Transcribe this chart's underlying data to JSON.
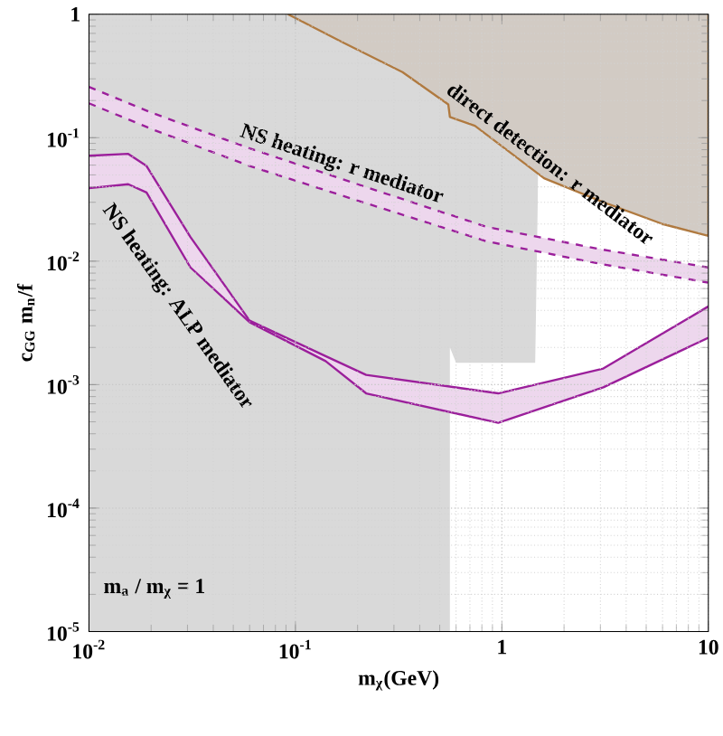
{
  "chart_data": {
    "type": "line",
    "xlabel": "m$_{χ}$(GeV)",
    "ylabel": "c$_{GG}$ m$_{n}$/f",
    "log": "xy",
    "grid": true,
    "xlim": [
      0.01,
      10
    ],
    "ylim": [
      1e-05,
      1
    ],
    "xticks": [
      {
        "value": 0.01,
        "label": "10$^{-2}$"
      },
      {
        "value": 0.1,
        "label": "10$^{-1}$"
      },
      1,
      10
    ],
    "yticks": [
      {
        "value": 1e-05,
        "label": "10$^{-5}$"
      },
      {
        "value": 0.0001,
        "label": "10$^{-4}$"
      },
      {
        "value": 0.001,
        "label": "10$^{-3}$"
      },
      {
        "value": 0.01,
        "label": "10$^{-2}$"
      },
      {
        "value": 0.1,
        "label": "10$^{-1}$"
      },
      1
    ],
    "annotations": [
      "m$_{a}$ / m$_{χ}$ = 1"
    ],
    "series": [
      {
        "type": "area",
        "color": "#d9d9d9",
        "x": [
          0.01,
          0.56,
          0.56,
          0.6,
          1.45,
          1.5,
          1.5,
          0.01
        ],
        "values": [
          1e-05,
          1e-05,
          0.002,
          0.0015,
          0.0015,
          0.055,
          1,
          1
        ]
      },
      {
        "type": "area",
        "name": "direct detection: r mediator",
        "color": "#b07a40",
        "line_style": "solid",
        "x": [
          0.092,
          0.17,
          0.33,
          0.55,
          0.56,
          0.74,
          1.24,
          1.6,
          3.1,
          6.0,
          10,
          10
        ],
        "values": [
          1,
          0.59,
          0.34,
          0.186,
          0.147,
          0.125,
          0.065,
          0.047,
          0.03,
          0.02,
          0.016,
          1
        ]
      },
      {
        "name": "NS heating: r mediator",
        "color": "#9b1f9b",
        "line_style": "dashed",
        "x": [
          0.01,
          0.02,
          0.06,
          0.2,
          0.84,
          3,
          10
        ],
        "values": [
          0.258,
          0.16,
          0.082,
          0.042,
          0.019,
          0.0125,
          0.0089
        ],
        "lower": [
          0.19,
          0.118,
          0.059,
          0.031,
          0.0145,
          0.0095,
          0.0067
        ],
        "upper": [
          0.258,
          0.16,
          0.082,
          0.042,
          0.019,
          0.0125,
          0.0089
        ]
      },
      {
        "color": "#9b1f9b",
        "line_style": "dashed",
        "x": [
          0.01,
          0.02,
          0.06,
          0.2,
          0.84,
          3,
          10
        ],
        "values": [
          0.19,
          0.118,
          0.059,
          0.031,
          0.0145,
          0.0095,
          0.0067
        ]
      },
      {
        "name": "NS heating: ALP mediator",
        "color": "#9b1f9b",
        "line_style": "solid",
        "x": [
          0.01,
          0.0155,
          0.019,
          0.031,
          0.06,
          0.14,
          0.22,
          0.96,
          3.1,
          10
        ],
        "values": [
          0.0714,
          0.074,
          0.059,
          0.0157,
          0.0033,
          0.0017,
          0.0012,
          0.00085,
          0.00135,
          0.0043
        ],
        "lower": [
          0.039,
          0.042,
          0.036,
          0.0089,
          0.0032,
          0.00155,
          0.00085,
          0.00049,
          0.00095,
          0.0024
        ],
        "upper": [
          0.0714,
          0.074,
          0.059,
          0.0157,
          0.0033,
          0.0017,
          0.0012,
          0.00085,
          0.00135,
          0.0043
        ]
      },
      {
        "color": "#9b1f9b",
        "line_style": "solid",
        "x": [
          0.01,
          0.0155,
          0.019,
          0.031,
          0.06,
          0.14,
          0.22,
          0.96,
          3.1,
          10
        ],
        "values": [
          0.039,
          0.042,
          0.036,
          0.0089,
          0.0032,
          0.00155,
          0.00085,
          0.00049,
          0.00095,
          0.0024
        ]
      }
    ]
  }
}
